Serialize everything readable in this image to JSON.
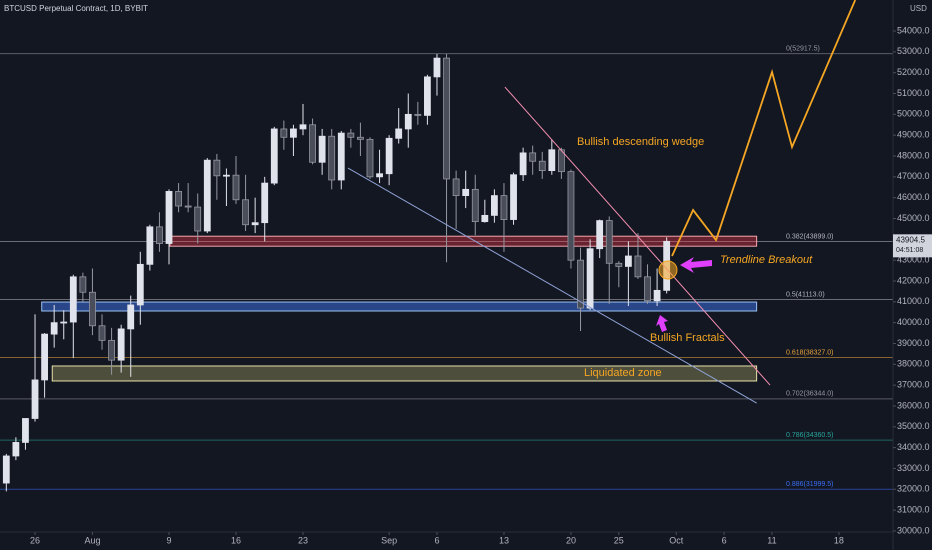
{
  "header": {
    "title": "BTCUSD Perpetual Contract, 1D, BYBIT",
    "currency": "USD"
  },
  "chart_data": {
    "type": "candlestick",
    "x": [
      "Jul 23",
      "Jul 24",
      "Jul 25",
      "Jul 26",
      "Jul 27",
      "Jul 28",
      "Jul 29",
      "Jul 30",
      "Jul 31",
      "Aug 1",
      "Aug 2",
      "Aug 3",
      "Aug 4",
      "Aug 5",
      "Aug 6",
      "Aug 7",
      "Aug 8",
      "Aug 9",
      "Aug 10",
      "Aug 11",
      "Aug 12",
      "Aug 13",
      "Aug 14",
      "Aug 15",
      "Aug 16",
      "Aug 17",
      "Aug 18",
      "Aug 19",
      "Aug 20",
      "Aug 21",
      "Aug 22",
      "Aug 23",
      "Aug 24",
      "Aug 25",
      "Aug 26",
      "Aug 27",
      "Aug 28",
      "Aug 29",
      "Aug 30",
      "Aug 31",
      "Sep 1",
      "Sep 2",
      "Sep 3",
      "Sep 4",
      "Sep 5",
      "Sep 6",
      "Sep 7",
      "Sep 8",
      "Sep 9",
      "Sep 10",
      "Sep 11",
      "Sep 12",
      "Sep 13",
      "Sep 14",
      "Sep 15",
      "Sep 16",
      "Sep 17",
      "Sep 18",
      "Sep 19",
      "Sep 20",
      "Sep 21",
      "Sep 22",
      "Sep 23",
      "Sep 24",
      "Sep 25",
      "Sep 26",
      "Sep 27",
      "Sep 28",
      "Sep 29",
      "Sep 30"
    ],
    "open": [
      32300,
      33600,
      34250,
      35400,
      37250,
      39450,
      40000,
      40030,
      42200,
      41460,
      39850,
      39150,
      38200,
      39700,
      40850,
      42800,
      44600,
      43800,
      46300,
      45600,
      45550,
      44400,
      47800,
      47050,
      47080,
      45900,
      44700,
      44800,
      46700,
      49300,
      48900,
      49300,
      49500,
      47700,
      48950,
      46850,
      49100,
      48900,
      48800,
      47000,
      47150,
      48850,
      49300,
      50000,
      49950,
      51800,
      52700,
      46900,
      46100,
      46400,
      44850,
      45150,
      46100,
      44950,
      47100,
      48150,
      47750,
      47300,
      48300,
      47250,
      43000,
      40700,
      43550,
      44900,
      42850,
      42700,
      43200,
      42200,
      41050,
      41550
    ],
    "high": [
      33700,
      34500,
      35400,
      40400,
      39500,
      40850,
      40600,
      42300,
      42400,
      42600,
      40400,
      39750,
      39900,
      41300,
      43400,
      44700,
      45300,
      46400,
      46700,
      46700,
      46200,
      47900,
      48100,
      47400,
      48000,
      47100,
      46000,
      47000,
      49400,
      49700,
      49500,
      50500,
      49800,
      49300,
      49300,
      49200,
      49300,
      49600,
      48900,
      48300,
      49000,
      50300,
      51000,
      50600,
      51900,
      52900,
      52900,
      47300,
      47300,
      47100,
      45900,
      46400,
      46700,
      47200,
      48400,
      48500,
      48200,
      48800,
      48400,
      47350,
      43600,
      44000,
      44950,
      45100,
      42950,
      43900,
      44300,
      42800,
      42600,
      44100
    ],
    "low": [
      31900,
      33400,
      33900,
      35250,
      36400,
      38800,
      39200,
      38300,
      41000,
      39400,
      38700,
      37500,
      37600,
      37400,
      39900,
      42500,
      43400,
      42800,
      45300,
      45300,
      43800,
      44300,
      45900,
      45600,
      45700,
      44400,
      44300,
      43900,
      46600,
      48300,
      48000,
      49000,
      47600,
      47100,
      46400,
      46400,
      48400,
      48000,
      46900,
      46700,
      46600,
      48600,
      48400,
      49500,
      49500,
      50900,
      42900,
      44500,
      45500,
      44200,
      44800,
      44800,
      43400,
      44700,
      46800,
      47100,
      46900,
      47100,
      46900,
      42600,
      39600,
      40600,
      43100,
      40900,
      41700,
      40800,
      42100,
      40900,
      40800,
      41400
    ],
    "close": [
      33600,
      34250,
      35400,
      37250,
      39450,
      40000,
      40030,
      42200,
      41460,
      39850,
      39150,
      38200,
      39700,
      40850,
      42800,
      44600,
      43800,
      46300,
      45600,
      45550,
      44400,
      47800,
      47050,
      47080,
      45900,
      44700,
      44800,
      46700,
      49300,
      48900,
      49300,
      49500,
      47700,
      48950,
      46850,
      49100,
      48900,
      48800,
      47000,
      47150,
      48850,
      49300,
      50000,
      49950,
      51800,
      52700,
      46900,
      46100,
      46400,
      44850,
      45150,
      46100,
      44950,
      47100,
      48150,
      47750,
      47300,
      48300,
      47250,
      43000,
      40700,
      43550,
      44900,
      42850,
      42700,
      43200,
      42200,
      41050,
      41550,
      43904.5
    ],
    "up_color": "#e0e3eb",
    "down_color": "#4a4e5a",
    "xlim": [
      -0.66,
      92.65
    ],
    "xticks": [
      {
        "value": 3,
        "label": "26"
      },
      {
        "value": 9,
        "label": "Aug"
      },
      {
        "value": 17,
        "label": "9"
      },
      {
        "value": 24,
        "label": "16"
      },
      {
        "value": 31,
        "label": "23"
      },
      {
        "value": 40,
        "label": "Sep"
      },
      {
        "value": 45,
        "label": "6"
      },
      {
        "value": 52,
        "label": "13"
      },
      {
        "value": 59,
        "label": "20"
      },
      {
        "value": 64,
        "label": "25"
      },
      {
        "value": 70,
        "label": "Oct"
      },
      {
        "value": 75,
        "label": "6"
      },
      {
        "value": 80,
        "label": "11"
      },
      {
        "value": 87,
        "label": "18"
      }
    ],
    "ylim": [
      29950,
      55490
    ],
    "yticks": [
      {
        "value": 30000,
        "label": "30000.0"
      },
      {
        "value": 31000,
        "label": "31000.0"
      },
      {
        "value": 32000,
        "label": "32000.0"
      },
      {
        "value": 33000,
        "label": "33000.0"
      },
      {
        "value": 34000,
        "label": "34000.0"
      },
      {
        "value": 35000,
        "label": "35000.0"
      },
      {
        "value": 36000,
        "label": "36000.0"
      },
      {
        "value": 37000,
        "label": "37000.0"
      },
      {
        "value": 38000,
        "label": "38000.0"
      },
      {
        "value": 39000,
        "label": "39000.0"
      },
      {
        "value": 40000,
        "label": "40000.0"
      },
      {
        "value": 41000,
        "label": "41000.0"
      },
      {
        "value": 42000,
        "label": "42000.0"
      },
      {
        "value": 43000,
        "label": "43000.0"
      },
      {
        "value": 44000,
        "label": "44000.0"
      },
      {
        "value": 45000,
        "label": "45000.0"
      },
      {
        "value": 46000,
        "label": "46000.0"
      },
      {
        "value": 47000,
        "label": "47000.0"
      },
      {
        "value": 48000,
        "label": "48000.0"
      },
      {
        "value": 49000,
        "label": "49000.0"
      },
      {
        "value": 50000,
        "label": "50000.0"
      },
      {
        "value": 51000,
        "label": "51000.0"
      },
      {
        "value": 52000,
        "label": "52000.0"
      },
      {
        "value": 53000,
        "label": "53000.0"
      },
      {
        "value": 54000,
        "label": "54000.0"
      }
    ],
    "last_price": 43904.5,
    "countdown": "04:51:08",
    "levels": [
      {
        "label": "0(52917.5)",
        "value": 52917.5,
        "color": "#9598a1"
      },
      {
        "label": "0.382(43899.0)",
        "value": 43899.0,
        "color": "#b2b5be"
      },
      {
        "label": "0.5(41113.0)",
        "value": 41113.0,
        "color": "#b2b5be"
      },
      {
        "label": "0.618(38327.0)",
        "value": 38327.0,
        "color": "#e8a33a"
      },
      {
        "label": "0.702(36344.0)",
        "value": 36344.0,
        "color": "#9598a1"
      },
      {
        "label": "0.786(34360.5)",
        "value": 34360.5,
        "color": "#26a69a"
      },
      {
        "label": "0.886(31999.5)",
        "value": 31999.5,
        "color": "#3b6df5"
      }
    ],
    "zones": [
      {
        "from": 17.1,
        "to": 78.4,
        "top": 44150,
        "bottom": 43670,
        "fill": "rgba(242,54,69,0.38)",
        "stroke": "#f4a6ad"
      },
      {
        "from": 3.7,
        "to": 78.4,
        "top": 40990,
        "bottom": 40560,
        "fill": "rgba(60,110,220,0.55)",
        "stroke": "#9cc2f5"
      },
      {
        "from": 4.8,
        "to": 78.4,
        "top": 37920,
        "bottom": 37200,
        "fill": "rgba(190,180,110,0.35)",
        "stroke": "#e8e0a8"
      }
    ],
    "drawings": [
      {
        "color": "#f48fb1",
        "x": [
          52.1,
          79.8
        ],
        "y": [
          51312,
          37005
        ]
      },
      {
        "color": "#90a4d8",
        "x": [
          35.7,
          78.4
        ],
        "y": [
          47423,
          36141
        ]
      },
      {
        "color": "#f5a623",
        "x": [
          69.56,
          71.76,
          74.16,
          80.01,
          82.1,
          88.7
        ],
        "y": [
          43198,
          45407,
          43966,
          52032,
          48431,
          55488
        ]
      }
    ],
    "annotations": [
      "Bullish descending wedge",
      "Trendline Breakout",
      "Bullish Fractals",
      "Liquidated zone"
    ]
  }
}
